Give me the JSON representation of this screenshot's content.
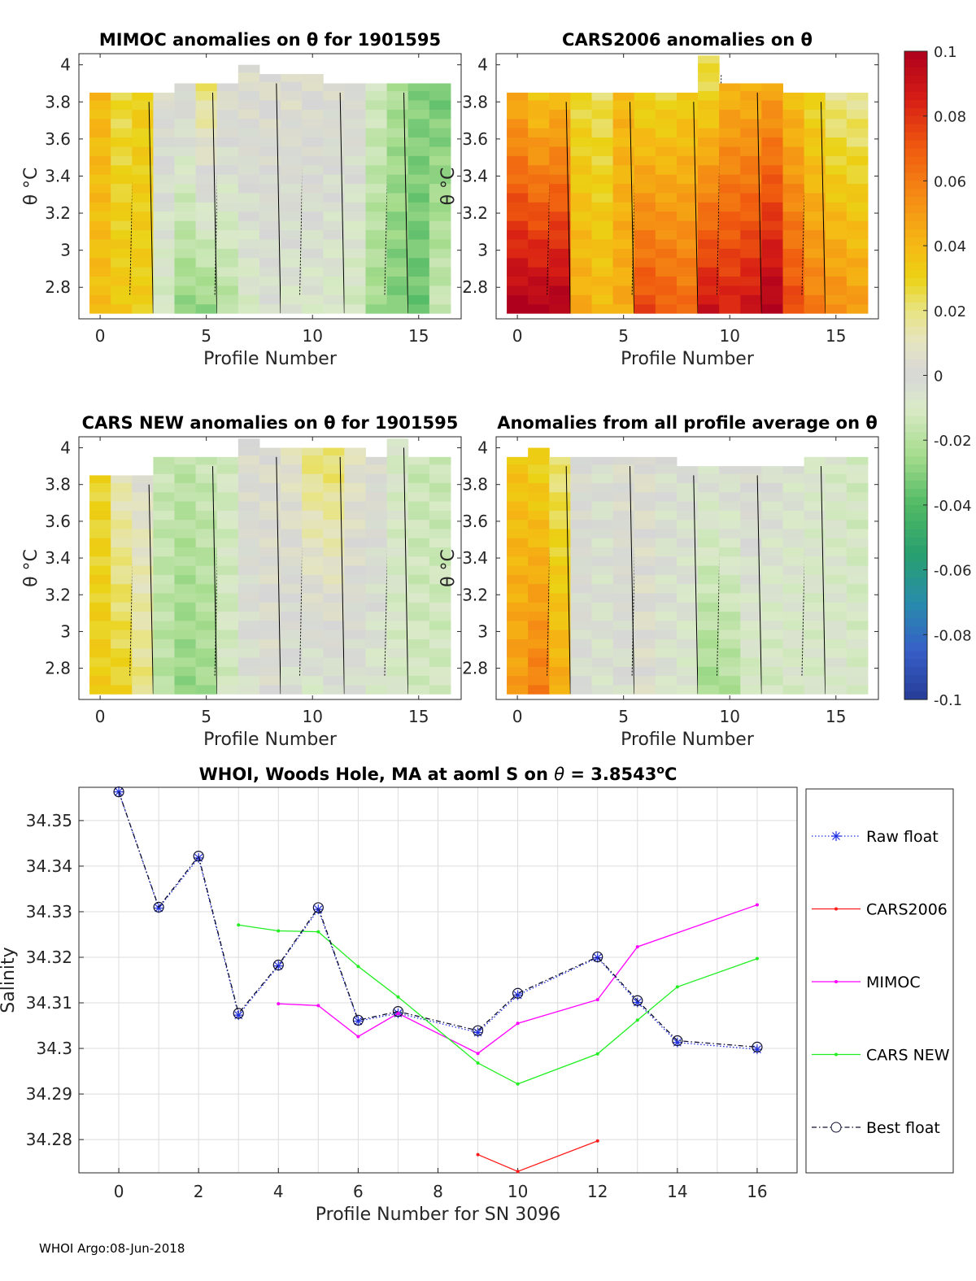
{
  "footer": "WHOI Argo:08-Jun-2018",
  "colorbar": {
    "ticks": [
      0.1,
      0.08,
      0.06,
      0.04,
      0.02,
      0,
      -0.02,
      -0.04,
      -0.06,
      -0.08,
      -0.1
    ],
    "tick_labels": [
      "0.1",
      "0.08",
      "0.06",
      "0.04",
      "0.02",
      "0",
      "-0.02",
      "-0.04",
      "-0.06",
      "-0.08",
      "-0.1"
    ],
    "range": [
      -0.1,
      0.1
    ]
  },
  "chart_data": [
    {
      "type": "heatmap",
      "title": "MIMOC anomalies on θ  for 1901595",
      "xlabel": "Profile Number",
      "ylabel": "θ °C",
      "xlim": [
        -1,
        17
      ],
      "ylim": [
        2.63,
        4.06
      ],
      "xticks": [
        0,
        5,
        10,
        15
      ],
      "yticks": [
        2.8,
        3,
        3.2,
        3.4,
        3.6,
        3.8,
        4
      ],
      "profiles": [
        0,
        1,
        2,
        3,
        4,
        5,
        6,
        7,
        8,
        9,
        10,
        11,
        12,
        13,
        14,
        15,
        16
      ],
      "theta_top": [
        3.85,
        3.85,
        3.85,
        3.85,
        3.9,
        3.9,
        3.9,
        4.0,
        3.95,
        3.95,
        3.95,
        3.9,
        3.9,
        3.9,
        3.9,
        3.9,
        3.9
      ],
      "theta_bottom": 2.66,
      "anomaly_top": [
        0.04,
        0.025,
        0.032,
        0.004,
        0.003,
        0.022,
        0.005,
        0.004,
        0.004,
        0.005,
        0.004,
        0.003,
        0.002,
        -0.012,
        -0.022,
        -0.03,
        -0.035
      ],
      "anomaly_bottom": [
        0.038,
        0.034,
        0.032,
        -0.012,
        -0.028,
        -0.028,
        -0.02,
        -0.01,
        -0.005,
        -0.008,
        -0.008,
        -0.01,
        -0.012,
        -0.025,
        -0.032,
        -0.035,
        -0.015
      ]
    },
    {
      "type": "heatmap",
      "title": "CARS2006 anomalies on θ",
      "xlabel": "Profile Number",
      "ylabel": "θ °C",
      "xlim": [
        -1,
        17
      ],
      "ylim": [
        2.63,
        4.06
      ],
      "xticks": [
        0,
        5,
        10,
        15
      ],
      "yticks": [
        2.8,
        3,
        3.2,
        3.4,
        3.6,
        3.8,
        4
      ],
      "profiles": [
        0,
        1,
        2,
        3,
        4,
        5,
        6,
        7,
        8,
        9,
        10,
        11,
        12,
        13,
        14,
        15,
        16
      ],
      "theta_top": [
        3.85,
        3.85,
        3.85,
        3.85,
        3.85,
        3.85,
        3.85,
        3.85,
        3.85,
        4.05,
        3.9,
        3.9,
        3.9,
        3.85,
        3.85,
        3.85,
        3.85
      ],
      "theta_bottom": 2.66,
      "anomaly_top": [
        0.04,
        0.03,
        0.035,
        0.025,
        0.022,
        0.04,
        0.025,
        0.025,
        0.03,
        0.025,
        0.04,
        0.04,
        0.045,
        0.035,
        0.025,
        0.015,
        0.015
      ],
      "anomaly_bottom": [
        0.1,
        0.1,
        0.1,
        0.045,
        0.04,
        0.045,
        0.075,
        0.07,
        0.065,
        0.09,
        0.085,
        0.09,
        0.1,
        0.075,
        0.06,
        0.055,
        0.05
      ]
    },
    {
      "type": "heatmap",
      "title": "CARS NEW anomalies on θ for 1901595",
      "xlabel": "Profile Number",
      "ylabel": "θ °C",
      "xlim": [
        -1,
        17
      ],
      "ylim": [
        2.63,
        4.06
      ],
      "xticks": [
        0,
        5,
        10,
        15
      ],
      "yticks": [
        2.8,
        3,
        3.2,
        3.4,
        3.6,
        3.8,
        4
      ],
      "profiles": [
        0,
        1,
        2,
        3,
        4,
        5,
        6,
        7,
        8,
        9,
        10,
        11,
        12,
        13,
        14,
        15,
        16
      ],
      "theta_top": [
        3.85,
        3.85,
        3.85,
        3.95,
        3.95,
        3.95,
        3.95,
        4.05,
        4.0,
        4.0,
        4.0,
        4.0,
        4.0,
        3.95,
        4.05,
        3.95,
        3.95
      ],
      "theta_bottom": 2.66,
      "anomaly_top": [
        0.028,
        0.01,
        0.004,
        -0.015,
        -0.018,
        -0.015,
        -0.012,
        0.003,
        0.004,
        0.008,
        0.02,
        0.022,
        0.008,
        0.002,
        -0.01,
        -0.015,
        -0.015
      ],
      "anomaly_bottom": [
        0.032,
        0.03,
        0.02,
        -0.02,
        -0.028,
        -0.025,
        -0.012,
        -0.005,
        0.002,
        -0.005,
        -0.008,
        -0.006,
        -0.004,
        -0.008,
        -0.01,
        -0.012,
        -0.012
      ]
    },
    {
      "type": "heatmap",
      "title": "Anomalies from all profile average on θ",
      "xlabel": "Profile Number",
      "ylabel": "θ °C",
      "xlim": [
        -1,
        17
      ],
      "ylim": [
        2.63,
        4.06
      ],
      "xticks": [
        0,
        5,
        10,
        15
      ],
      "yticks": [
        2.8,
        3,
        3.2,
        3.4,
        3.6,
        3.8,
        4
      ],
      "profiles": [
        0,
        1,
        2,
        3,
        4,
        5,
        6,
        7,
        8,
        9,
        10,
        11,
        12,
        13,
        14,
        15,
        16
      ],
      "theta_top": [
        3.95,
        4.0,
        3.95,
        3.95,
        3.95,
        3.95,
        3.95,
        3.95,
        3.9,
        3.9,
        3.9,
        3.9,
        3.9,
        3.9,
        3.95,
        3.95,
        3.95
      ],
      "theta_bottom": 2.66,
      "anomaly_top": [
        0.035,
        0.03,
        0.02,
        0.002,
        -0.004,
        0.004,
        0.004,
        -0.004,
        -0.004,
        -0.004,
        -0.002,
        0.002,
        -0.003,
        -0.006,
        -0.008,
        -0.01,
        -0.012
      ],
      "anomaly_bottom": [
        0.05,
        0.06,
        0.045,
        -0.004,
        -0.006,
        -0.004,
        0.004,
        -0.006,
        -0.008,
        -0.025,
        -0.022,
        -0.012,
        -0.012,
        -0.01,
        -0.01,
        -0.008,
        -0.01
      ]
    },
    {
      "type": "line",
      "title": "WHOI, Woods Hole, MA at aoml S on θ = 3.8543°C",
      "title_prefix": "WHOI, Woods Hole, MA at aoml S on ",
      "title_theta": "θ",
      "title_value": " = 3.8543",
      "title_unit": "o",
      "title_suffix": "C",
      "xlabel": "Profile Number for SN 3096",
      "ylabel": "Salinity",
      "xlim": [
        -1,
        17
      ],
      "ylim": [
        34.2727,
        34.3573
      ],
      "xticks": [
        0,
        2,
        4,
        6,
        8,
        10,
        12,
        14,
        16
      ],
      "yticks": [
        34.28,
        34.29,
        34.3,
        34.31,
        34.32,
        34.33,
        34.34,
        34.35
      ],
      "series": [
        {
          "name": "Raw float",
          "color": "#1f2fe0",
          "style": "dotted",
          "marker": "star",
          "x": [
            0,
            1,
            2,
            3,
            4,
            5,
            6,
            7,
            9,
            10,
            12,
            13,
            14,
            16
          ],
          "y": [
            34.3563,
            34.3308,
            34.3418,
            34.3073,
            34.3181,
            34.3305,
            34.306,
            34.3077,
            34.3035,
            34.3117,
            34.3199,
            34.3101,
            34.3013,
            34.2998
          ]
        },
        {
          "name": "CARS2006",
          "color": "#ff1a1a",
          "style": "solid",
          "marker": "dot",
          "x": [
            9,
            10,
            12
          ],
          "y": [
            34.2767,
            34.273,
            34.2797
          ]
        },
        {
          "name": "MIMOC",
          "color": "#ff00ff",
          "style": "solid",
          "marker": "dot",
          "x": [
            4,
            5,
            6,
            7,
            9,
            10,
            12,
            13,
            16
          ],
          "y": [
            34.3098,
            34.3094,
            34.3026,
            34.3077,
            34.2989,
            34.3055,
            34.3107,
            34.3223,
            34.3315
          ],
          "segments": [
            [
              0,
              8
            ]
          ]
        },
        {
          "name": "CARS NEW",
          "color": "#22ee22",
          "style": "solid",
          "marker": "dot",
          "x": [
            3,
            4,
            5,
            6,
            7,
            9,
            10,
            12,
            13,
            14,
            16
          ],
          "y": [
            34.3271,
            34.3258,
            34.3256,
            34.318,
            34.3113,
            34.2968,
            34.2922,
            34.2988,
            34.3062,
            34.3135,
            34.3197
          ]
        },
        {
          "name": "Best float",
          "color": "#101030",
          "style": "dashdot",
          "marker": "circle",
          "x": [
            0,
            1,
            2,
            3,
            4,
            5,
            6,
            7,
            9,
            10,
            12,
            13,
            14,
            16
          ],
          "y": [
            34.3563,
            34.331,
            34.3422,
            34.3077,
            34.3183,
            34.3309,
            34.3062,
            34.3081,
            34.3039,
            34.3121,
            34.3201,
            34.3105,
            34.3017,
            34.3003
          ]
        }
      ]
    }
  ]
}
